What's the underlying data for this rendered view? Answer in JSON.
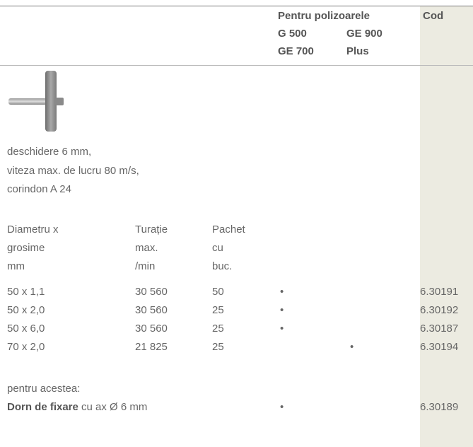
{
  "header": {
    "group_title": "Pentru polizoarele",
    "model_columns": [
      [
        "G 500",
        "GE 700"
      ],
      [
        "GE 900",
        "Plus"
      ]
    ],
    "code_title": "Cod"
  },
  "description": [
    "deschidere 6 mm,",
    "viteza max. de lucru 80 m/s,",
    "corindon A 24"
  ],
  "table": {
    "column_headers": [
      [
        "Diametru x",
        "grosime",
        "mm"
      ],
      [
        "Turație",
        "max.",
        "/min"
      ],
      [
        "Pachet",
        "cu",
        "buc."
      ]
    ],
    "rows": [
      [
        "50 x 1,1",
        "30 560",
        "50",
        "•",
        null,
        "6.30191"
      ],
      [
        "50 x 2,0",
        "30 560",
        "25",
        "•",
        null,
        "6.30192"
      ],
      [
        "50 x 6,0",
        "30 560",
        "25",
        "•",
        null,
        "6.30187"
      ],
      [
        "70 x 2,0",
        "21 825",
        "25",
        null,
        "•",
        "6.30194"
      ]
    ]
  },
  "accessory": {
    "intro": "pentru acestea:",
    "name": "Dorn de fixare",
    "detail": " cu ax Ø 6 mm",
    "cells": [
      "•",
      null,
      "6.30189"
    ]
  }
}
